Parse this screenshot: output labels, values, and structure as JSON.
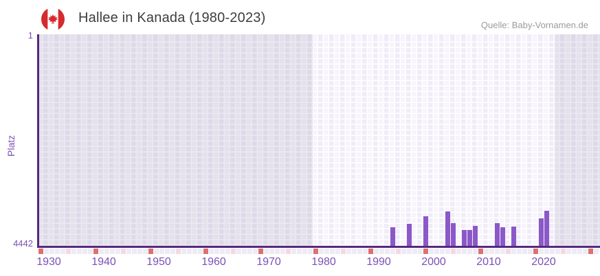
{
  "header": {
    "title": "Hallee in Kanada (1980-2023)",
    "source": "Quelle: Baby-Vornamen.de",
    "flag_icon": "canada-flag"
  },
  "chart_data": {
    "type": "bar",
    "title": "Hallee in Kanada (1980-2023)",
    "xlabel": "",
    "ylabel": "Platz",
    "grid": true,
    "legend_position": "none",
    "y_axis": {
      "min": 1,
      "max": 4442,
      "inverted": true,
      "tick_top": "1",
      "tick_bottom": "4442"
    },
    "x_axis": {
      "first_year": 1930,
      "last_year": 2031,
      "tick_years": [
        1930,
        1940,
        1950,
        1960,
        1970,
        1980,
        1990,
        2000,
        2010,
        2020
      ]
    },
    "data_range": {
      "start": 1980,
      "end": 2023
    },
    "series": [
      {
        "name": "Platz",
        "points": [
          {
            "year": 1994,
            "rank": 4055
          },
          {
            "year": 1997,
            "rank": 3985
          },
          {
            "year": 2000,
            "rank": 3815
          },
          {
            "year": 2004,
            "rank": 3725
          },
          {
            "year": 2005,
            "rank": 3970
          },
          {
            "year": 2007,
            "rank": 4115
          },
          {
            "year": 2008,
            "rank": 4115
          },
          {
            "year": 2009,
            "rank": 4030
          },
          {
            "year": 2013,
            "rank": 3970
          },
          {
            "year": 2014,
            "rank": 4055
          },
          {
            "year": 2016,
            "rank": 4045
          },
          {
            "year": 2021,
            "rank": 3870
          },
          {
            "year": 2022,
            "rank": 3710
          }
        ]
      }
    ]
  },
  "colors": {
    "bar": "#8c58c8",
    "axis": "#55287f",
    "tick_text": "#7b50b5",
    "title_text": "#3d3d3d",
    "source_text": "#9b9b9b",
    "cell_light_a": "#f7f4fc",
    "cell_light_b": "#f0ecf8",
    "outside_overlay": "rgba(100,95,130,0.13)",
    "timeline_default": "#eeeaf6",
    "timeline_half_decade": "#f5d9e1",
    "timeline_decade": "#de7070",
    "flag_red": "#d52b2e"
  }
}
